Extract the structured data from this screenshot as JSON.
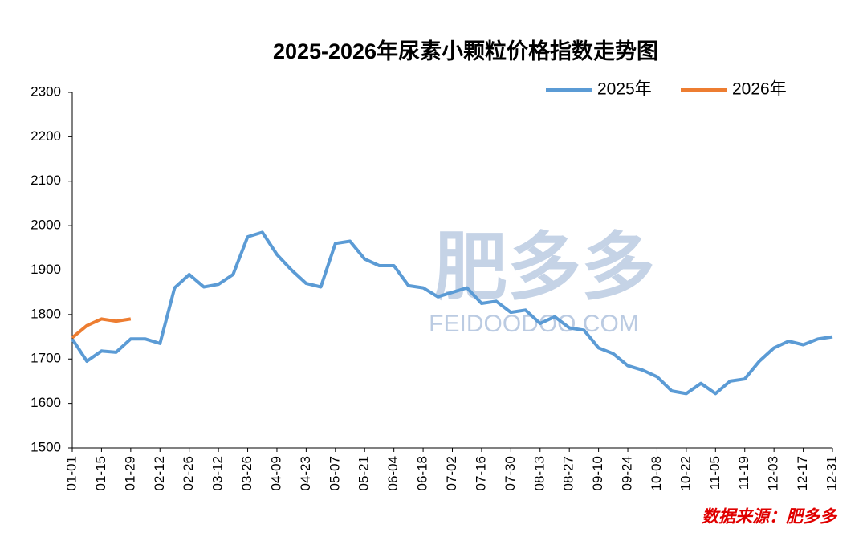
{
  "chart_data": {
    "type": "line",
    "title": "2025-2026年尿素小颗粒价格指数走势图",
    "source": "数据来源：肥多多",
    "watermark": {
      "brand": "肥多多",
      "site": "FEIDOODOO.COM"
    },
    "categories": [
      "01-01",
      null,
      "01-15",
      null,
      "01-29",
      null,
      "02-12",
      null,
      "02-26",
      null,
      "03-12",
      null,
      "03-26",
      null,
      "04-09",
      null,
      "04-23",
      null,
      "05-07",
      null,
      "05-21",
      null,
      "06-04",
      null,
      "06-18",
      null,
      "07-02",
      null,
      "07-16",
      null,
      "07-30",
      null,
      "08-13",
      null,
      "08-27",
      null,
      "09-10",
      null,
      "09-24",
      null,
      "10-08",
      null,
      "10-22",
      null,
      "11-05",
      null,
      "11-19",
      null,
      "12-03",
      null,
      "12-17",
      null,
      "12-31"
    ],
    "series": [
      {
        "name": "2025年",
        "color": "#5b9bd5",
        "values": [
          1745,
          1695,
          1718,
          1715,
          1745,
          1745,
          1735,
          1860,
          1890,
          1862,
          1868,
          1890,
          1975,
          1985,
          1935,
          1900,
          1870,
          1862,
          1960,
          1965,
          1925,
          1910,
          1910,
          1865,
          1860,
          1840,
          1850,
          1860,
          1825,
          1830,
          1805,
          1810,
          1780,
          1795,
          1770,
          1765,
          1725,
          1712,
          1685,
          1675,
          1660,
          1628,
          1622,
          1645,
          1622,
          1650,
          1655,
          1695,
          1725,
          1740,
          1732,
          1745,
          1750
        ]
      },
      {
        "name": "2026年",
        "color": "#ed7d31",
        "values": [
          1748,
          1775,
          1790,
          1785,
          1790,
          null,
          null,
          null,
          null,
          null,
          null,
          null,
          null,
          null,
          null,
          null,
          null,
          null,
          null,
          null,
          null,
          null,
          null,
          null,
          null,
          null,
          null,
          null,
          null,
          null,
          null,
          null,
          null,
          null,
          null,
          null,
          null,
          null,
          null,
          null,
          null,
          null,
          null,
          null,
          null,
          null,
          null,
          null,
          null,
          null,
          null,
          null,
          null
        ]
      }
    ],
    "ylim": [
      1500,
      2300
    ],
    "yticks": [
      1500,
      1600,
      1700,
      1800,
      1900,
      2000,
      2100,
      2200,
      2300
    ],
    "grid": false,
    "legend": "top-right"
  }
}
